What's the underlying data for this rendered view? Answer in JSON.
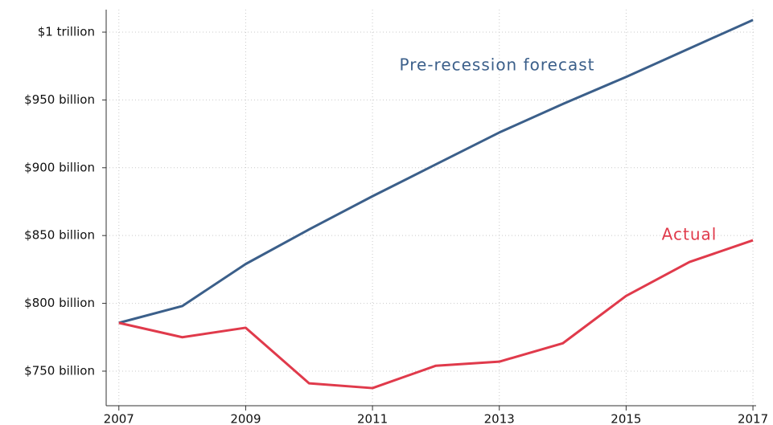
{
  "chart_data": {
    "type": "line",
    "x": [
      2007,
      2008,
      2009,
      2010,
      2011,
      2012,
      2013,
      2014,
      2015,
      2016,
      2017
    ],
    "series": [
      {
        "name": "Pre-recession forecast",
        "color": "#3b5f8a",
        "values": [
          785.6,
          798,
          829,
          854.5,
          879,
          902.5,
          926,
          947,
          967,
          988,
          1009
        ]
      },
      {
        "name": "Actual",
        "color": "#e03a4b",
        "values": [
          785.6,
          775,
          782,
          741,
          737.5,
          754,
          757,
          770.5,
          805.5,
          830.5,
          846.5
        ]
      }
    ],
    "xlim": [
      2006.8,
      2017.05
    ],
    "xticks": [
      2007,
      2009,
      2011,
      2013,
      2015,
      2017
    ],
    "ylim": [
      724.5,
      1016.6
    ],
    "yticks": [
      {
        "value": 750,
        "label": "$750 billion"
      },
      {
        "value": 800,
        "label": "$800 billion"
      },
      {
        "value": 850,
        "label": "$850 billion"
      },
      {
        "value": 900,
        "label": "$900 billion"
      },
      {
        "value": 950,
        "label": "$950 billion"
      },
      {
        "value": 1000,
        "label": "$1 trillion"
      }
    ],
    "grid": true
  }
}
